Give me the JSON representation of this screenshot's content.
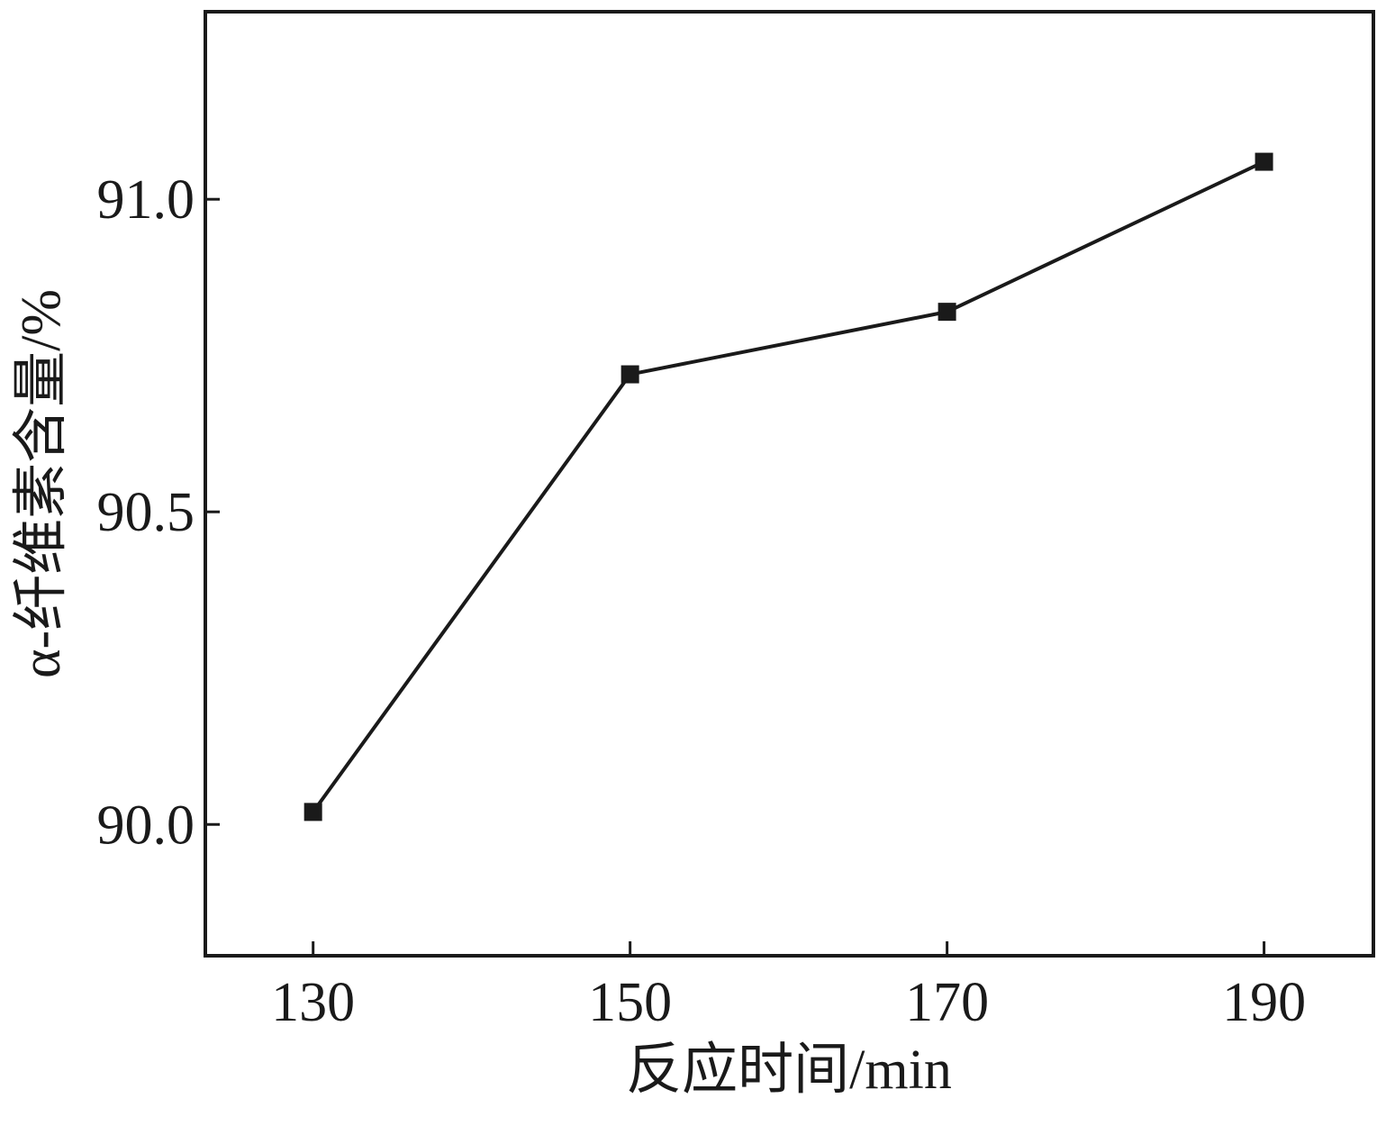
{
  "chart_data": {
    "type": "line",
    "title": "",
    "xlabel": "反应时间/min",
    "ylabel": "α-纤维素含量/%",
    "x": [
      130,
      150,
      170,
      190
    ],
    "x_ticks": [
      "130",
      "150",
      "170",
      "190"
    ],
    "y_ticks": [
      "90.0",
      "90.5",
      "91.0"
    ],
    "series": [
      {
        "values": [
          90.02,
          90.72,
          90.82,
          91.06
        ]
      }
    ],
    "xlim": [
      123.2,
      196.9
    ],
    "ylim": [
      89.79,
      91.3
    ],
    "grid": false,
    "legend": "none",
    "colors": {
      "line": "#1a1a1a",
      "marker": "#1a1a1a",
      "axis": "#1a1a1a"
    }
  }
}
